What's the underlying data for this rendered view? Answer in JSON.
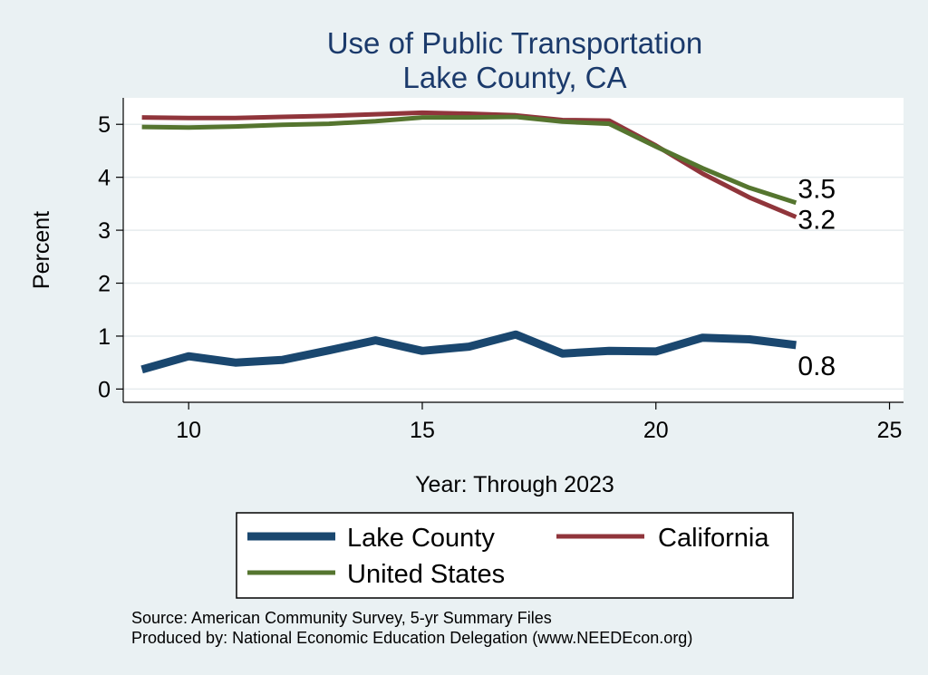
{
  "chart_data": {
    "type": "line",
    "title": [
      "Use of Public Transportation",
      "Lake County, CA"
    ],
    "xlabel": "Year: Through 2023",
    "ylabel": "Percent",
    "xlim": [
      8.6,
      25.3
    ],
    "ylim": [
      -0.25,
      5.5
    ],
    "xticks": [
      10,
      15,
      20,
      25
    ],
    "yticks": [
      0,
      1,
      2,
      3,
      4,
      5
    ],
    "grid": true,
    "legend_position": "bottom",
    "x": [
      9,
      10,
      11,
      12,
      13,
      14,
      15,
      16,
      17,
      18,
      19,
      20,
      21,
      22,
      23
    ],
    "series": [
      {
        "name": "Lake County",
        "color": "#1a476f",
        "values": [
          0.37,
          0.62,
          0.5,
          0.55,
          0.73,
          0.92,
          0.72,
          0.8,
          1.03,
          0.67,
          0.72,
          0.71,
          0.97,
          0.94,
          0.83
        ],
        "end_label": "0.8"
      },
      {
        "name": "California",
        "color": "#90353b",
        "values": [
          5.13,
          5.12,
          5.12,
          5.14,
          5.16,
          5.19,
          5.22,
          5.2,
          5.17,
          5.08,
          5.07,
          4.6,
          4.07,
          3.62,
          3.25
        ],
        "end_label": "3.2"
      },
      {
        "name": "United States",
        "color": "#55752f",
        "values": [
          4.95,
          4.94,
          4.96,
          4.99,
          5.01,
          5.06,
          5.13,
          5.13,
          5.14,
          5.05,
          5.01,
          4.58,
          4.17,
          3.8,
          3.52
        ],
        "end_label": "3.5"
      }
    ]
  },
  "footer": {
    "source": "Source: American Community Survey, 5-yr Summary Files",
    "produced": "Produced by: National Economic Education Delegation (www.NEEDEcon.org)"
  }
}
